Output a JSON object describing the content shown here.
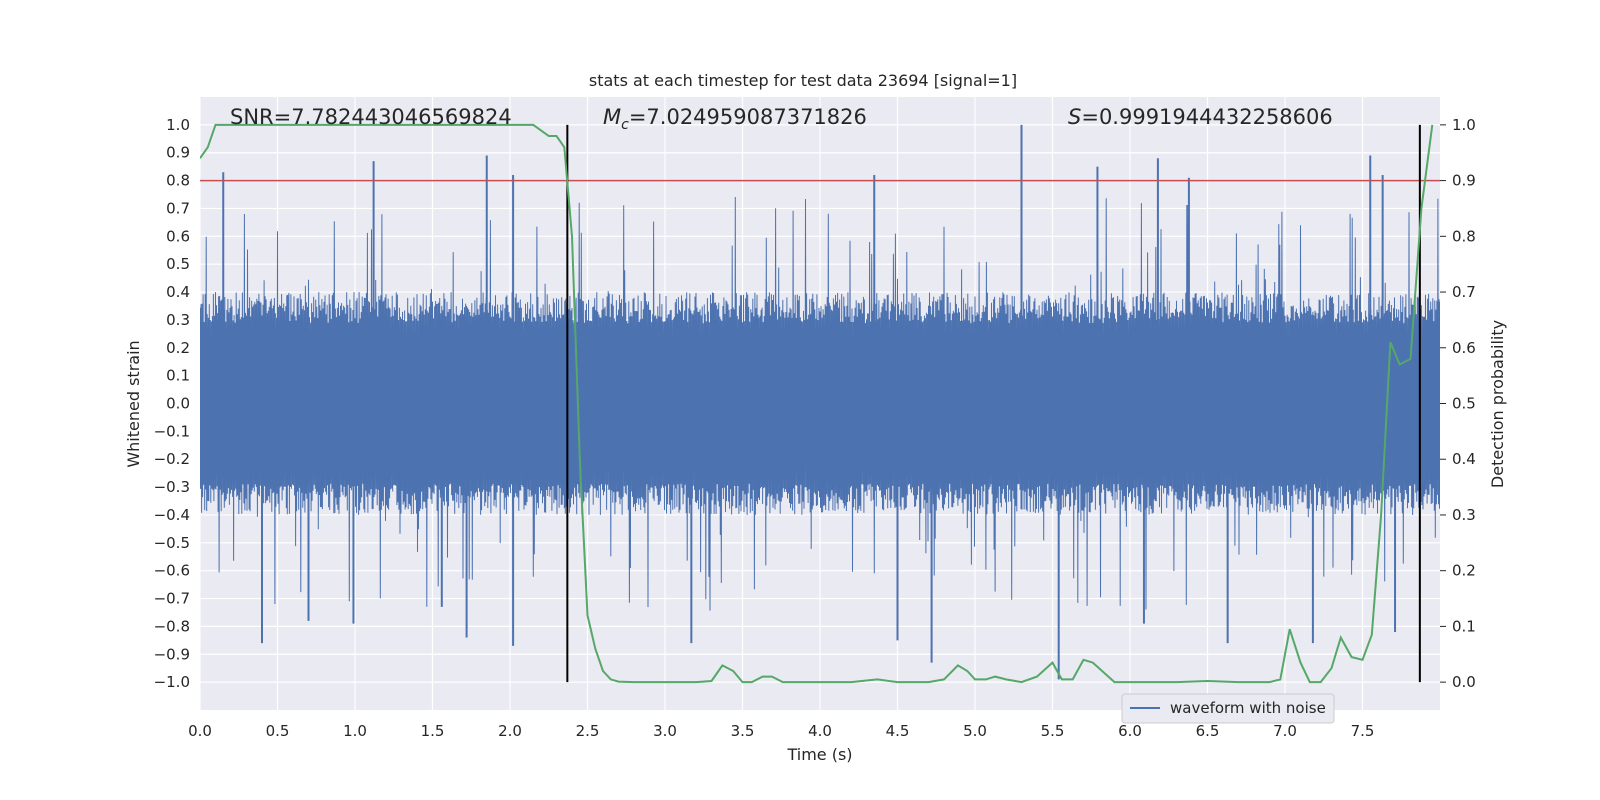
{
  "chart_data": {
    "type": "line",
    "title": "stats at each timestep for test data 23694 [signal=1]",
    "xlabel": "Time (s)",
    "ylabel": "Whitened strain",
    "y2label": "Detection probability",
    "xlim": [
      0.0,
      8.0
    ],
    "ylim": [
      -1.1,
      1.1
    ],
    "y2lim": [
      -0.05,
      1.05
    ],
    "x_ticks": [
      0.0,
      0.5,
      1.0,
      1.5,
      2.0,
      2.5,
      3.0,
      3.5,
      4.0,
      4.5,
      5.0,
      5.5,
      6.0,
      6.5,
      7.0,
      7.5
    ],
    "y_ticks": [
      -1.0,
      -0.9,
      -0.8,
      -0.7,
      -0.6,
      -0.5,
      -0.4,
      -0.3,
      -0.2,
      -0.1,
      0.0,
      0.1,
      0.2,
      0.3,
      0.4,
      0.5,
      0.6,
      0.7,
      0.8,
      0.9,
      1.0
    ],
    "y2_ticks": [
      0.0,
      0.1,
      0.2,
      0.3,
      0.4,
      0.5,
      0.6,
      0.7,
      0.8,
      0.9,
      1.0
    ],
    "grid": true,
    "legend": {
      "placement": "lower-right",
      "entries": [
        "waveform with noise"
      ]
    },
    "annotations": {
      "snr_text": "SNR=7.782443046569824",
      "mc_symbol": "M",
      "mc_subscript": "c",
      "mc_value": "=7.024959087371826",
      "s_symbol": "S",
      "s_value": "=0.9991944432258606"
    },
    "threshold": {
      "axis": "left",
      "value": 0.8,
      "color": "#c44e52"
    },
    "vertical_markers": [
      2.37,
      7.87
    ],
    "colors": {
      "waveform": "#4c72b0",
      "probability": "#55a868",
      "background": "#eaeaf2",
      "markers": "#000000"
    },
    "series": [
      {
        "name": "waveform with noise",
        "axis": "left",
        "style": "dense-noise",
        "envelope_typical": 0.4,
        "peaks": [
          [
            0.15,
            0.83
          ],
          [
            0.4,
            -0.86
          ],
          [
            0.7,
            -0.78
          ],
          [
            0.99,
            -0.79
          ],
          [
            1.12,
            0.87
          ],
          [
            1.56,
            -0.73
          ],
          [
            1.72,
            -0.84
          ],
          [
            1.85,
            0.89
          ],
          [
            2.02,
            0.82
          ],
          [
            2.02,
            -0.87
          ],
          [
            3.17,
            -0.86
          ],
          [
            4.35,
            0.82
          ],
          [
            4.5,
            -0.85
          ],
          [
            4.72,
            -0.93
          ],
          [
            5.3,
            1.0
          ],
          [
            5.54,
            -0.99
          ],
          [
            5.79,
            0.85
          ],
          [
            6.09,
            -0.79
          ],
          [
            6.18,
            0.88
          ],
          [
            6.38,
            0.81
          ],
          [
            6.63,
            -0.86
          ],
          [
            7.18,
            -0.86
          ],
          [
            7.55,
            0.89
          ],
          [
            7.63,
            0.82
          ],
          [
            7.71,
            -0.82
          ]
        ]
      },
      {
        "name": "detection probability",
        "axis": "right",
        "x": [
          0.0,
          0.05,
          0.1,
          0.2,
          0.4,
          0.6,
          0.8,
          1.0,
          1.2,
          1.4,
          1.6,
          1.8,
          2.0,
          2.1,
          2.15,
          2.2,
          2.25,
          2.3,
          2.35,
          2.4,
          2.45,
          2.5,
          2.55,
          2.6,
          2.65,
          2.7,
          2.8,
          3.0,
          3.2,
          3.3,
          3.37,
          3.44,
          3.5,
          3.56,
          3.63,
          3.69,
          3.76,
          4.0,
          4.2,
          4.37,
          4.5,
          4.7,
          4.8,
          4.89,
          4.95,
          5.0,
          5.07,
          5.13,
          5.2,
          5.3,
          5.4,
          5.5,
          5.56,
          5.63,
          5.7,
          5.76,
          5.9,
          6.1,
          6.3,
          6.5,
          6.7,
          6.9,
          6.97,
          7.03,
          7.1,
          7.16,
          7.23,
          7.3,
          7.36,
          7.43,
          7.5,
          7.56,
          7.62,
          7.68,
          7.74,
          7.81,
          7.88,
          7.95
        ],
        "values": [
          0.94,
          0.96,
          1.0,
          1.0,
          1.0,
          1.0,
          1.0,
          1.0,
          1.0,
          1.0,
          1.0,
          1.0,
          1.0,
          1.0,
          1.0,
          0.99,
          0.98,
          0.98,
          0.96,
          0.8,
          0.4,
          0.12,
          0.06,
          0.02,
          0.005,
          0.001,
          0.0,
          0.0,
          0.0,
          0.002,
          0.03,
          0.02,
          0.0,
          0.0,
          0.01,
          0.01,
          0.0,
          0.0,
          0.0,
          0.005,
          0.0,
          0.0,
          0.005,
          0.03,
          0.02,
          0.005,
          0.005,
          0.01,
          0.005,
          0.0,
          0.01,
          0.035,
          0.005,
          0.005,
          0.04,
          0.035,
          0.0,
          0.0,
          0.0,
          0.002,
          0.0,
          0.0,
          0.005,
          0.095,
          0.035,
          0.0,
          0.0,
          0.025,
          0.08,
          0.045,
          0.04,
          0.085,
          0.3,
          0.61,
          0.57,
          0.58,
          0.85,
          1.0
        ]
      }
    ]
  }
}
